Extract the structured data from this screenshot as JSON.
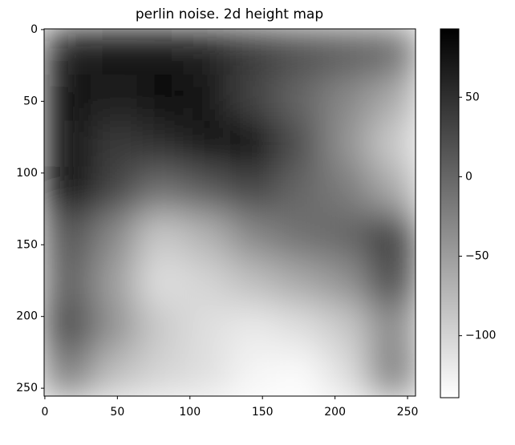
{
  "chart_data": {
    "type": "heatmap",
    "title": "perlin noise. 2d height map",
    "cmap": "gray_r",
    "z": [
      [
        60,
        70,
        75,
        60,
        40,
        20,
        10,
        0
      ],
      [
        80,
        60,
        85,
        70,
        30,
        0,
        -30,
        -60
      ],
      [
        85,
        40,
        50,
        70,
        85,
        20,
        -40,
        -90
      ],
      [
        90,
        30,
        -10,
        10,
        30,
        0,
        -20,
        -60
      ],
      [
        20,
        -30,
        -90,
        -70,
        -30,
        -10,
        0,
        40
      ],
      [
        10,
        -50,
        -110,
        -100,
        -80,
        -60,
        -40,
        30
      ],
      [
        30,
        -40,
        -90,
        -110,
        -120,
        -110,
        -90,
        -30
      ],
      [
        -20,
        -80,
        -100,
        -110,
        -130,
        -135,
        -110,
        -20
      ]
    ],
    "xlim": [
      -0.5,
      255.5
    ],
    "ylim": [
      255.5,
      -0.5
    ],
    "xticks": [
      0,
      50,
      100,
      150,
      200,
      250
    ],
    "yticks": [
      0,
      50,
      100,
      150,
      200,
      250
    ],
    "clim": [
      -139,
      93
    ],
    "cticks": [
      {
        "value": -100,
        "label": "−100"
      },
      {
        "value": -50,
        "label": "−50"
      },
      0,
      50
    ]
  }
}
